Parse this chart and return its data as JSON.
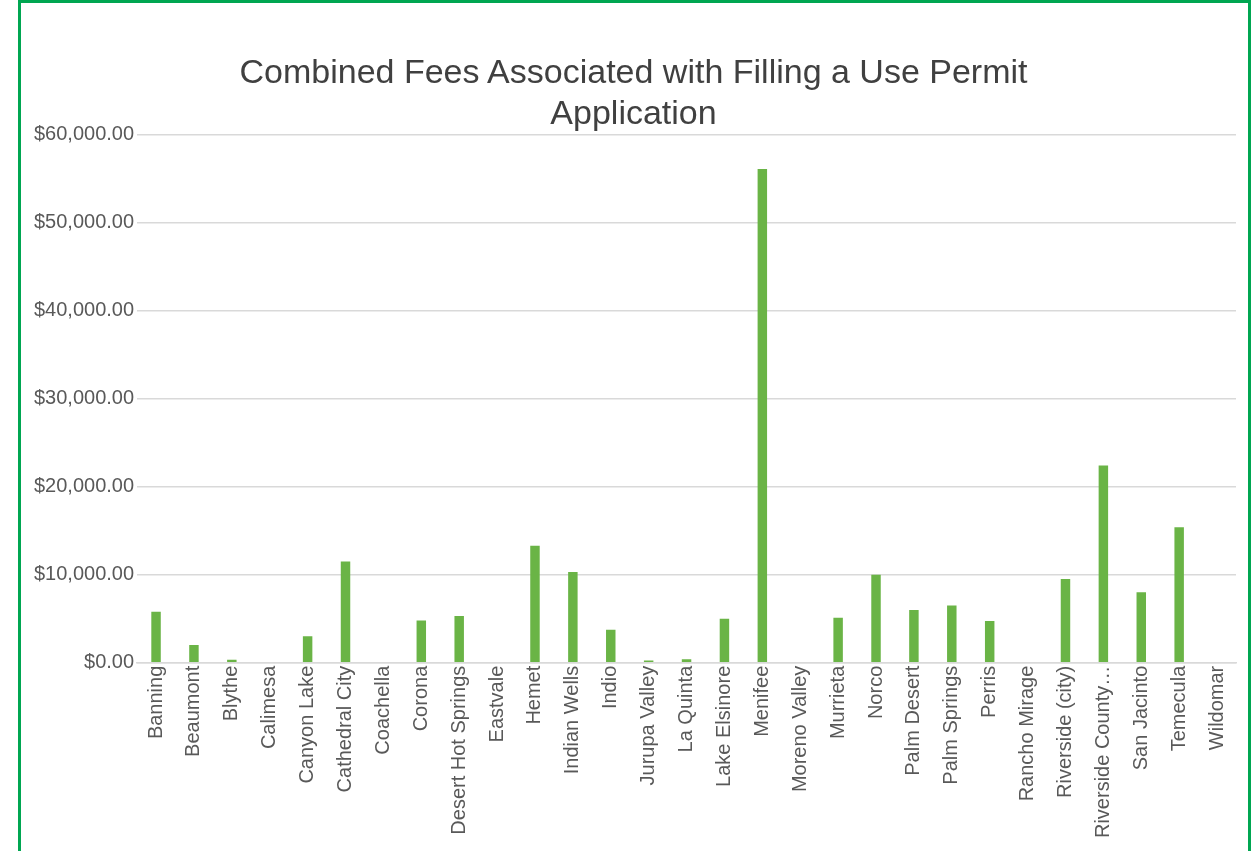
{
  "chart_data": {
    "type": "bar",
    "title": [
      "Combined Fees Associated with Filling a Use Permit",
      "Application"
    ],
    "categories": [
      "Banning",
      "Beaumont",
      "Blythe",
      "Calimesa",
      "Canyon Lake",
      "Cathedral City",
      "Coachella",
      "Corona",
      "Desert Hot Springs",
      "Eastvale",
      "Hemet",
      "Indian Wells",
      "Indio",
      "Jurupa Valley",
      "La Quinta",
      "Lake Elsinore",
      "Menifee",
      "Moreno Valley",
      "Murrieta",
      "Norco",
      "Palm Desert",
      "Palm Springs",
      "Perris",
      "Rancho Mirage",
      "Riverside (city)",
      "Riverside County…",
      "San Jacinto",
      "Temecula",
      "Wildomar"
    ],
    "values": [
      5800,
      2000,
      350,
      0,
      3000,
      11500,
      0,
      4800,
      5300,
      0,
      13300,
      10300,
      3750,
      250,
      400,
      5000,
      56100,
      0,
      5100,
      10000,
      6000,
      6500,
      4750,
      0,
      9500,
      22400,
      8000,
      15400,
      0
    ],
    "color": "#6ab446",
    "ylim": [
      0,
      60000
    ],
    "yticks": [
      {
        "value": 0,
        "label": "$0.00"
      },
      {
        "value": 10000,
        "label": "$10,000.00"
      },
      {
        "value": 20000,
        "label": "$20,000.00"
      },
      {
        "value": 30000,
        "label": "$30,000.00"
      },
      {
        "value": 40000,
        "label": "$40,000.00"
      },
      {
        "value": 50000,
        "label": "$50,000.00"
      },
      {
        "value": 60000,
        "label": "$60,000.00"
      }
    ],
    "grid": "y",
    "legend": false
  }
}
